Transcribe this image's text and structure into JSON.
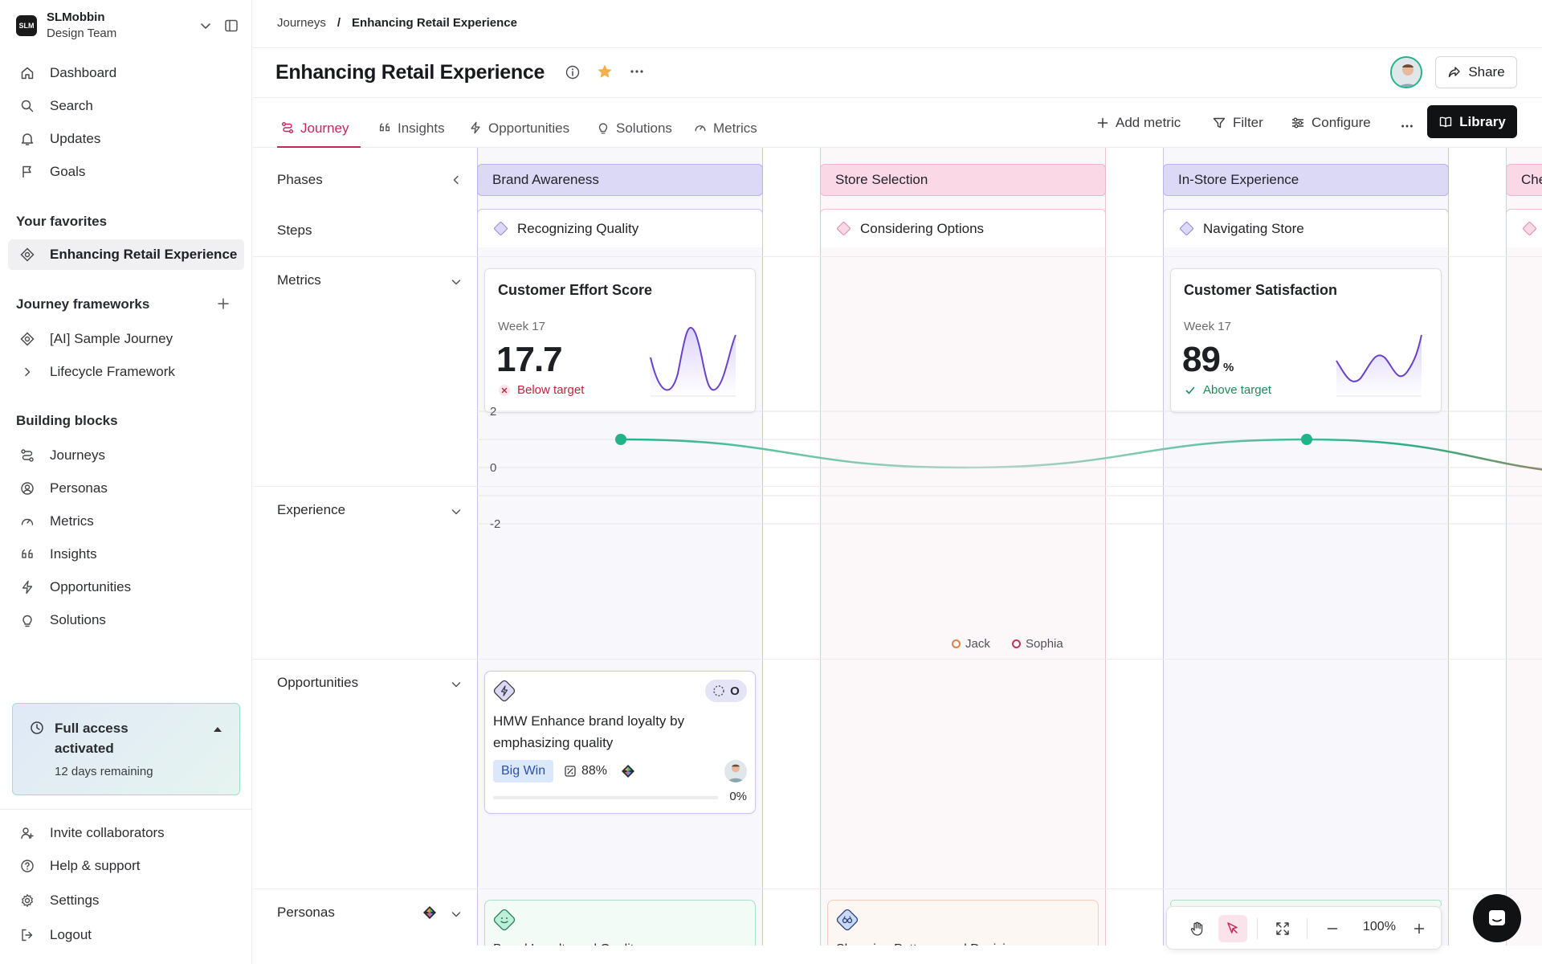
{
  "workspace": {
    "logo": "SLM",
    "name": "SLMobbin",
    "team": "Design Team"
  },
  "nav": [
    {
      "label": "Dashboard",
      "icon": "home-icon"
    },
    {
      "label": "Search",
      "icon": "search-icon"
    },
    {
      "label": "Updates",
      "icon": "bell-icon"
    },
    {
      "label": "Goals",
      "icon": "flag-icon"
    }
  ],
  "favorites": {
    "title": "Your favorites",
    "items": [
      {
        "label": "Enhancing Retail Experience",
        "icon": "journey-icon"
      }
    ]
  },
  "frameworks": {
    "title": "Journey frameworks",
    "items": [
      {
        "label": "[AI] Sample Journey",
        "icon": "journey-icon"
      },
      {
        "label": "Lifecycle Framework",
        "icon": "chevron-right-icon"
      }
    ]
  },
  "blocks": {
    "title": "Building blocks",
    "items": [
      {
        "label": "Journeys",
        "icon": "journeys-icon"
      },
      {
        "label": "Personas",
        "icon": "persona-icon"
      },
      {
        "label": "Metrics",
        "icon": "gauge-icon"
      },
      {
        "label": "Insights",
        "icon": "quote-icon"
      },
      {
        "label": "Opportunities",
        "icon": "bolt-icon"
      },
      {
        "label": "Solutions",
        "icon": "bulb-icon"
      }
    ]
  },
  "trial": {
    "title": "Full access activated",
    "remaining": "12 days remaining"
  },
  "footer_nav": [
    {
      "label": "Invite collaborators",
      "icon": "invite-icon"
    },
    {
      "label": "Help & support",
      "icon": "help-icon"
    },
    {
      "label": "Settings",
      "icon": "gear-icon"
    },
    {
      "label": "Logout",
      "icon": "logout-icon"
    }
  ],
  "breadcrumb": {
    "parent": "Journeys",
    "separator": "/",
    "current": "Enhancing Retail Experience"
  },
  "page": {
    "title": "Enhancing Retail Experience",
    "share_label": "Share"
  },
  "tabs": [
    {
      "label": "Journey",
      "active": true
    },
    {
      "label": "Insights"
    },
    {
      "label": "Opportunities"
    },
    {
      "label": "Solutions"
    },
    {
      "label": "Metrics"
    }
  ],
  "tools": {
    "add_metric": "Add metric",
    "filter": "Filter",
    "configure": "Configure",
    "library": "Library"
  },
  "rows": {
    "phases": "Phases",
    "steps": "Steps",
    "metrics": "Metrics",
    "experience": "Experience",
    "opportunities": "Opportunities",
    "personas": "Personas"
  },
  "phases": [
    {
      "label": "Brand Awareness",
      "tone": "purple"
    },
    {
      "label": "Store Selection",
      "tone": "pink"
    },
    {
      "label": "In-Store Experience",
      "tone": "purple"
    },
    {
      "label": "Che",
      "tone": "pink"
    }
  ],
  "steps": [
    {
      "label": "Recognizing Quality",
      "tone": "purple"
    },
    {
      "label": "Considering Options",
      "tone": "pink"
    },
    {
      "label": "Navigating Store",
      "tone": "purple"
    }
  ],
  "metric_cards": [
    {
      "title": "Customer Effort Score",
      "week": "Week 17",
      "value": "17.7",
      "unit": "",
      "status": "Below target",
      "status_color": "#c0243b"
    },
    {
      "title": "Customer Satisfaction",
      "week": "Week 17",
      "value": "89",
      "unit": "%",
      "status": "Above target",
      "status_color": "#1f8a5b"
    }
  ],
  "chart_data": {
    "type": "line",
    "x": [
      "Brand Awareness",
      "Store Selection",
      "In-Store Experience",
      "Che"
    ],
    "series": [
      {
        "values": [
          1,
          0,
          1,
          -0.3
        ]
      }
    ],
    "yticks": [
      2,
      0,
      -2
    ],
    "ylim": [
      -2.5,
      2.5
    ],
    "legend": [
      "Jack",
      "Sophia"
    ],
    "legend_colors": [
      "#d9824b",
      "#c0345a"
    ],
    "line_color": "#21b488"
  },
  "opportunity": {
    "pill": "O",
    "title": "HMW Enhance brand loyalty by emphasizing quality",
    "badge": "Big Win",
    "score": "88%",
    "progress": "0%"
  },
  "personas": [
    {
      "cut_text": "Brand Loyalty and Quality"
    },
    {
      "cut_text": "Shopping Patterns and Decisions"
    }
  ],
  "zoom": "100%"
}
